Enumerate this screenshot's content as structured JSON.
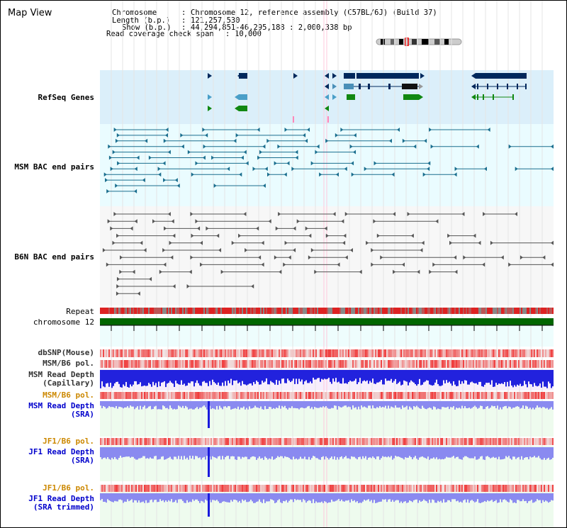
{
  "title": "Map View",
  "info": {
    "chromosome_label": "Chromosome",
    "chromosome_value": "Chromosome 12, reference assembly (C57BL/6J) (Build 37)",
    "length_label": "Length (b.p.)",
    "length_value": "121,257,530",
    "show_label": "Show (b.p.)",
    "show_value": "44,294,851-46,295,188 : 2,000,338 bp",
    "span_label": "Read coverage check span",
    "span_value": "10,000"
  },
  "tracks": {
    "refseq": "RefSeq Genes",
    "msm_bac": "MSM BAC end pairs",
    "b6n_bac": "B6N BAC end pairs",
    "repeat": "Repeat",
    "chromosome": "chromosome 12",
    "dbsnp": "dbSNP(Mouse)",
    "msm_b6_pol": "MSM/B6 pol.",
    "msm_read_cap_1": "MSM Read Depth",
    "msm_read_cap_2": "(Capillary)",
    "msm_b6_pol2": "MSM/B6 pol.",
    "msm_read_sra_1": "MSM Read Depth",
    "msm_read_sra_2": "(SRA)",
    "jf1_b6_pol": "JF1/B6 pol.",
    "jf1_read_1": "JF1 Read Depth",
    "jf1_read_2": "(SRA)",
    "jf1_b6_pol2": "JF1/B6 pol.",
    "jf1_trim_1": "JF1 Read Depth",
    "jf1_trim_2": "(SRA trimmed)"
  },
  "axis_ticks": [
    "44400000",
    "44800000",
    "45200000",
    "45600000",
    "46000000"
  ],
  "colors": {
    "refseq_label": "#000099",
    "msm_label": "#006699",
    "b6n_label": "#555555",
    "pol_label": "#cc8800",
    "read_label": "#0000cc",
    "chromosome_bar": "#006600",
    "gene_dark": "#00285c",
    "msm_bac": "#1a6e8e",
    "b6n_bac": "#555555"
  }
}
